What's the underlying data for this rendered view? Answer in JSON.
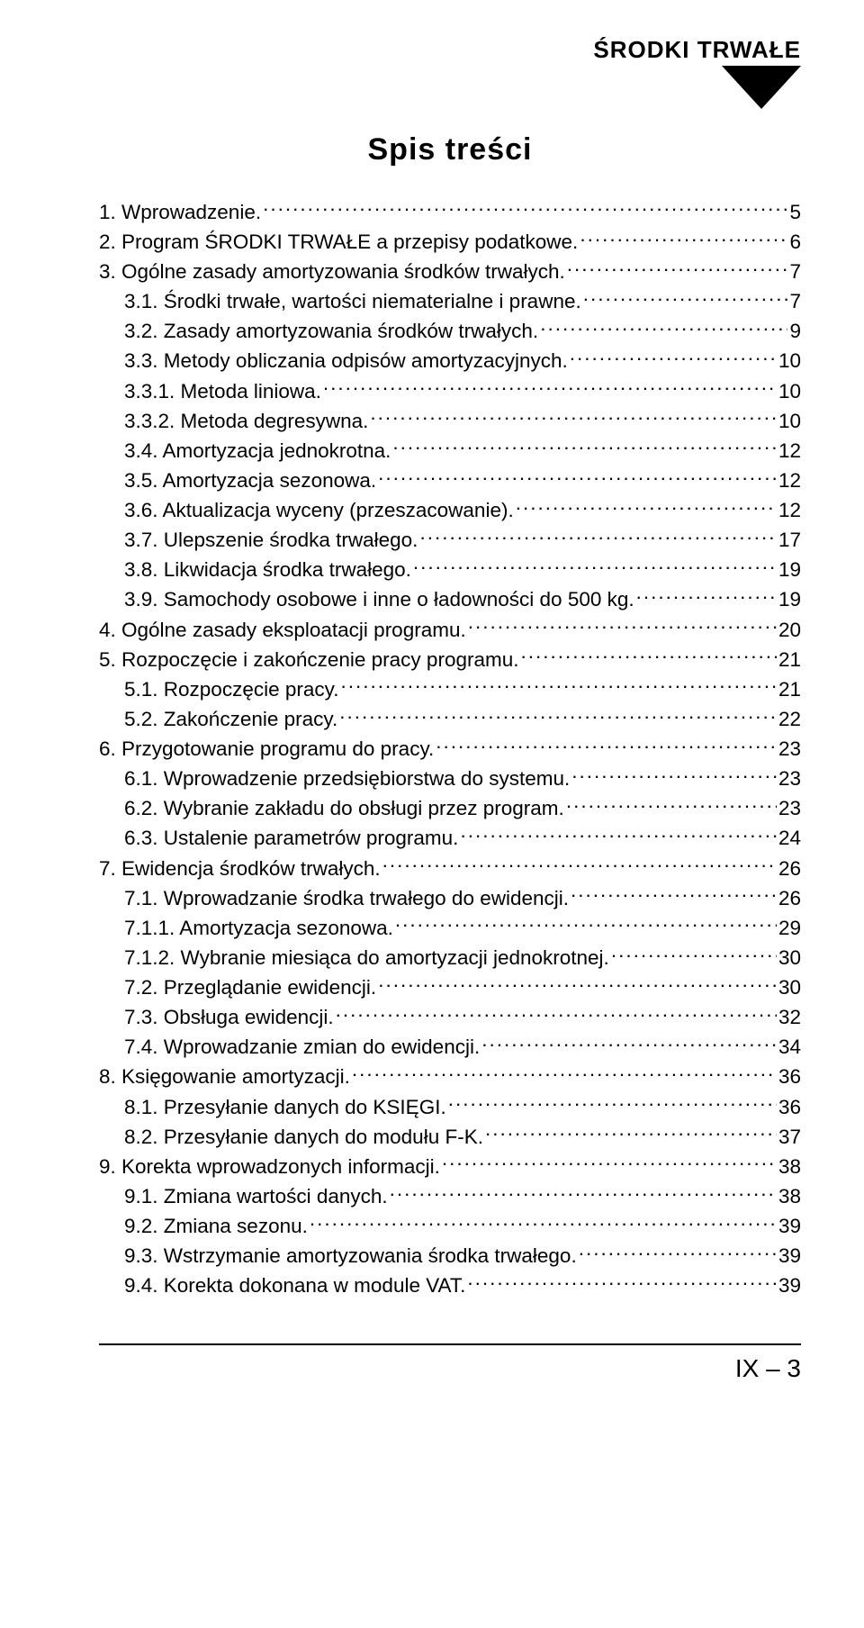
{
  "header_label": "ŚRODKI TRWAŁE",
  "toc_title": "Spis treści",
  "footer": "IX – 3",
  "colors": {
    "text": "#000000",
    "background": "#ffffff",
    "triangle": "#000000",
    "rule": "#000000"
  },
  "typography": {
    "body_family": "Arial, Helvetica, sans-serif",
    "body_size_pt": 17,
    "header_size_pt": 20,
    "title_size_pt": 26,
    "footer_size_pt": 21
  },
  "entries": [
    {
      "level": 0,
      "label": "1. Wprowadzenie.",
      "page": "5"
    },
    {
      "level": 0,
      "label": "2. Program ŚRODKI TRWAŁE a przepisy podatkowe.",
      "page": "6"
    },
    {
      "level": 0,
      "label": "3. Ogólne zasady amortyzowania środków trwałych.",
      "page": "7"
    },
    {
      "level": 1,
      "label": "3.1. Środki trwałe, wartości niematerialne i prawne.",
      "page": "7"
    },
    {
      "level": 1,
      "label": "3.2. Zasady amortyzowania środków trwałych.",
      "page": "9"
    },
    {
      "level": 1,
      "label": "3.3. Metody obliczania odpisów amortyzacyjnych.",
      "page": "10"
    },
    {
      "level": 1,
      "label": "3.3.1. Metoda liniowa.",
      "page": "10"
    },
    {
      "level": 1,
      "label": "3.3.2. Metoda degresywna.",
      "page": "10"
    },
    {
      "level": 1,
      "label": "3.4. Amortyzacja jednokrotna.",
      "page": "12"
    },
    {
      "level": 1,
      "label": "3.5. Amortyzacja sezonowa.",
      "page": "12"
    },
    {
      "level": 1,
      "label": "3.6. Aktualizacja wyceny (przeszacowanie).",
      "page": "12"
    },
    {
      "level": 1,
      "label": "3.7. Ulepszenie środka trwałego.",
      "page": "17"
    },
    {
      "level": 1,
      "label": "3.8. Likwidacja środka trwałego.",
      "page": "19"
    },
    {
      "level": 1,
      "label": "3.9. Samochody osobowe i inne o ładowności do 500 kg.",
      "page": "19"
    },
    {
      "level": 0,
      "label": "4. Ogólne zasady eksploatacji programu.",
      "page": "20"
    },
    {
      "level": 0,
      "label": "5. Rozpoczęcie i zakończenie pracy programu.",
      "page": "21"
    },
    {
      "level": 1,
      "label": "5.1. Rozpoczęcie pracy.",
      "page": "21"
    },
    {
      "level": 1,
      "label": "5.2. Zakończenie pracy.",
      "page": "22"
    },
    {
      "level": 0,
      "label": "6. Przygotowanie programu do pracy.",
      "page": "23"
    },
    {
      "level": 1,
      "label": "6.1. Wprowadzenie przedsiębiorstwa do systemu.",
      "page": "23"
    },
    {
      "level": 1,
      "label": "6.2. Wybranie zakładu do obsługi przez program.",
      "page": "23"
    },
    {
      "level": 1,
      "label": "6.3. Ustalenie parametrów programu.",
      "page": "24"
    },
    {
      "level": 0,
      "label": "7. Ewidencja środków trwałych.",
      "page": "26"
    },
    {
      "level": 1,
      "label": "7.1. Wprowadzanie środka trwałego do ewidencji.",
      "page": "26"
    },
    {
      "level": 1,
      "label": "7.1.1. Amortyzacja sezonowa.",
      "page": "29"
    },
    {
      "level": 1,
      "label": "7.1.2. Wybranie miesiąca do amortyzacji jednokrotnej.",
      "page": "30"
    },
    {
      "level": 1,
      "label": "7.2. Przeglądanie ewidencji.",
      "page": "30"
    },
    {
      "level": 1,
      "label": "7.3. Obsługa ewidencji.",
      "page": "32"
    },
    {
      "level": 1,
      "label": "7.4. Wprowadzanie zmian do ewidencji.",
      "page": "34"
    },
    {
      "level": 0,
      "label": "8. Księgowanie amortyzacji.",
      "page": "36"
    },
    {
      "level": 1,
      "label": "8.1. Przesyłanie danych do KSIĘGI.",
      "page": "36"
    },
    {
      "level": 1,
      "label": "8.2. Przesyłanie danych do modułu F-K.",
      "page": "37"
    },
    {
      "level": 0,
      "label": "9. Korekta wprowadzonych informacji.",
      "page": "38"
    },
    {
      "level": 1,
      "label": "9.1. Zmiana wartości danych.",
      "page": "38"
    },
    {
      "level": 1,
      "label": "9.2. Zmiana sezonu.",
      "page": "39"
    },
    {
      "level": 1,
      "label": "9.3. Wstrzymanie amortyzowania środka trwałego.",
      "page": "39"
    },
    {
      "level": 1,
      "label": "9.4. Korekta dokonana w module VAT.",
      "page": "39"
    }
  ]
}
